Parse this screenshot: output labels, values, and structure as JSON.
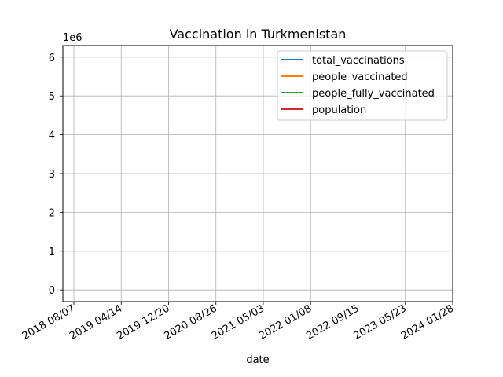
{
  "chart_data": {
    "type": "line",
    "title": "Vaccination in Turkmenistan",
    "xlabel": "date",
    "ylabel": "",
    "y_offset_label": "1e6",
    "x_tick_labels": [
      "2018 08/07",
      "2019 04/14",
      "2019 12/20",
      "2020 08/26",
      "2021 05/03",
      "2022 01/08",
      "2022 09/15",
      "2023 05/23",
      "2024 01/28"
    ],
    "y_ticks": [
      0,
      1,
      2,
      3,
      4,
      5,
      6
    ],
    "ylim": [
      -0.3,
      6.3
    ],
    "grid": true,
    "legend_position": "top-right",
    "series": [
      {
        "name": "total_vaccinations",
        "color": "#1f77b4",
        "values": []
      },
      {
        "name": "people_vaccinated",
        "color": "#ff7f0e",
        "values": []
      },
      {
        "name": "people_fully_vaccinated",
        "color": "#2ca02c",
        "values": []
      },
      {
        "name": "population",
        "color": "#d62728",
        "values": []
      }
    ]
  }
}
